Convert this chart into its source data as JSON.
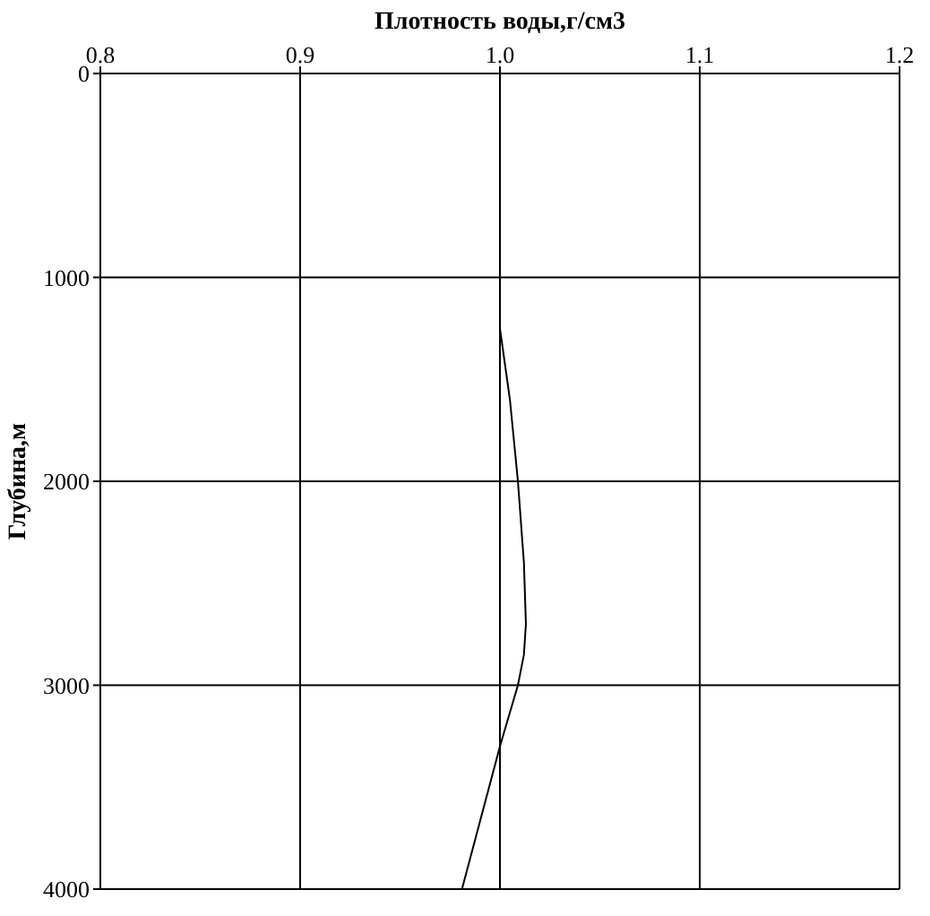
{
  "chart_data": {
    "type": "line",
    "xlabel": "Плотность воды,г/см3",
    "ylabel": "Глубина,м",
    "x": [
      1.0,
      1.0,
      1.0,
      1.005,
      1.009,
      1.012,
      1.013,
      1.012,
      1.009,
      1.0,
      0.981
    ],
    "values": [
      0,
      1000,
      1250,
      1600,
      2000,
      2400,
      2700,
      2850,
      3000,
      3300,
      4000
    ],
    "color": "#000000",
    "xlim": [
      0.8,
      1.2
    ],
    "xticks": [
      0.8,
      0.9,
      {
        "value": 1,
        "label": "1.0"
      },
      1.1,
      1.2
    ],
    "ylim": [
      4000,
      0
    ],
    "yticks": [
      0,
      1000,
      2000,
      3000,
      4000
    ],
    "grid": true
  }
}
